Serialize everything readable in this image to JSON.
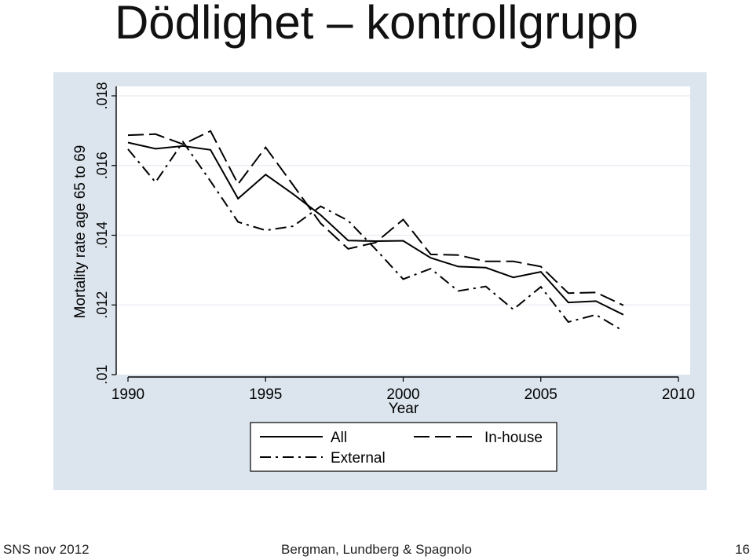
{
  "slide": {
    "title": "Dödlighet – kontrollgrupp",
    "footer_left": "SNS nov 2012",
    "footer_center": "Bergman, Lundberg & Spagnolo",
    "footer_right": "16"
  },
  "colors": {
    "plot_background": "#dce5ee",
    "inner_background": "#ffffff",
    "line": "#000000"
  },
  "chart_data": {
    "type": "line",
    "title": "",
    "xlabel": "Year",
    "ylabel": "Mortality rate age 65 to 69",
    "xlim": [
      1990,
      2010
    ],
    "ylim": [
      0.01,
      0.018
    ],
    "xticks": [
      1990,
      1995,
      2000,
      2005,
      2010
    ],
    "xtick_labels": [
      "1990",
      "1995",
      "2000",
      "2005",
      "2010"
    ],
    "yticks": [
      0.01,
      0.012,
      0.014,
      0.016,
      0.018
    ],
    "ytick_labels": [
      ".01",
      ".012",
      ".014",
      ".016",
      ".018"
    ],
    "grid": true,
    "legend_position": "bottom",
    "x": [
      1990,
      1991,
      1992,
      1993,
      1994,
      1995,
      1996,
      1997,
      1998,
      1999,
      2000,
      2001,
      2002,
      2003,
      2004,
      2005,
      2006,
      2007,
      2008
    ],
    "series": [
      {
        "name": "All",
        "style": "solid",
        "values": [
          0.01666,
          0.01648,
          0.01656,
          0.01645,
          0.01505,
          0.01574,
          0.01518,
          0.01458,
          0.01385,
          0.01383,
          0.01384,
          0.01335,
          0.0131,
          0.01307,
          0.01279,
          0.01295,
          0.01207,
          0.01211,
          0.01172
        ]
      },
      {
        "name": "In-house",
        "style": "longdash",
        "values": [
          0.01687,
          0.0169,
          0.01661,
          0.01699,
          0.01547,
          0.01652,
          0.01544,
          0.01434,
          0.01361,
          0.01379,
          0.01445,
          0.01345,
          0.01343,
          0.01325,
          0.01325,
          0.0131,
          0.01234,
          0.01236,
          0.01199
        ]
      },
      {
        "name": "External",
        "style": "dashdot",
        "values": [
          0.01647,
          0.01552,
          0.01668,
          0.01555,
          0.01438,
          0.01414,
          0.01426,
          0.01483,
          0.01442,
          0.0136,
          0.01274,
          0.01304,
          0.0124,
          0.01253,
          0.01187,
          0.01252,
          0.01151,
          0.01172,
          0.01125
        ]
      }
    ]
  }
}
